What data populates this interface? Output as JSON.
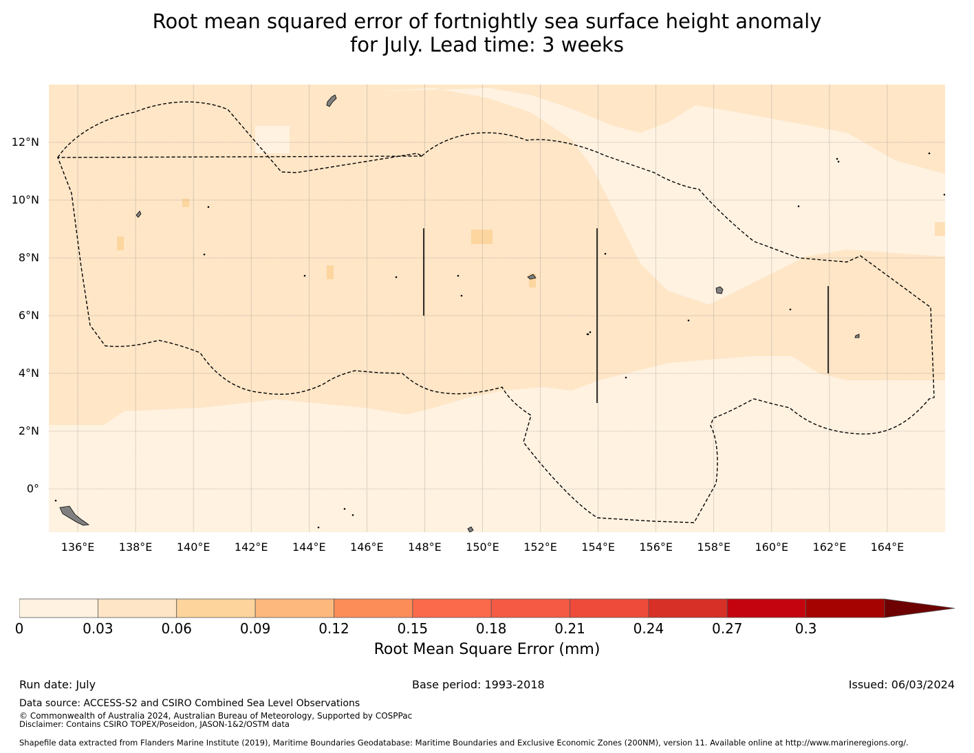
{
  "title": {
    "line1": "Root mean squared error of fortnightly sea surface height anomaly",
    "line2": "for July. Lead time: 3 weeks"
  },
  "map": {
    "lat_range": [
      -1.5,
      14
    ],
    "lon_range": [
      135,
      166
    ],
    "lat_ticks": [
      "12°N",
      "10°N",
      "8°N",
      "6°N",
      "4°N",
      "2°N",
      "0°"
    ],
    "lon_ticks": [
      "136°E",
      "138°E",
      "140°E",
      "142°E",
      "144°E",
      "146°E",
      "148°E",
      "150°E",
      "152°E",
      "154°E",
      "156°E",
      "158°E",
      "160°E",
      "162°E",
      "164°E"
    ],
    "gridlines": true,
    "land_color": "#808080",
    "field_colors": {
      "lowest": "#fff2e1",
      "low": "#fee6c7",
      "medium": "#fdd59e"
    }
  },
  "colorbar": {
    "label": "Root Mean Square Error (mm)",
    "ticks": [
      "0",
      "0.03",
      "0.06",
      "0.09",
      "0.12",
      "0.15",
      "0.18",
      "0.21",
      "0.24",
      "0.27",
      "0.3"
    ],
    "colors": [
      "#fff2e1",
      "#fee5c6",
      "#fdd49c",
      "#fdb87e",
      "#fc8d59",
      "#fb6a4a",
      "#f55a45",
      "#ef4b3a",
      "#d73027",
      "#c4050f",
      "#a50202",
      "#6d0000"
    ],
    "extend": "max"
  },
  "footer": {
    "run_date": "Run date: July",
    "base_period": "Base period: 1993-2018",
    "issued": "Issued: 06/03/2024",
    "data_source": "Data source: ACCESS-S2 and CSIRO Combined Sea Level Observations",
    "copyright": "© Commonwealth of Australia 2024, Australian Bureau of Meteorology, Supported by COSPPac",
    "disclaimer": "Disclaimer: Contains CSIRO TOPEX/Poseidon, JASON-1&2/OSTM data",
    "shapefile": "Shapefile data extracted from Flanders Marine Institute (2019), Maritime Boundaries Geodatabase: Maritime Boundaries and Exclusive Economic Zones (200NM), version 11. Available online at http://www.marineregions.org/."
  }
}
